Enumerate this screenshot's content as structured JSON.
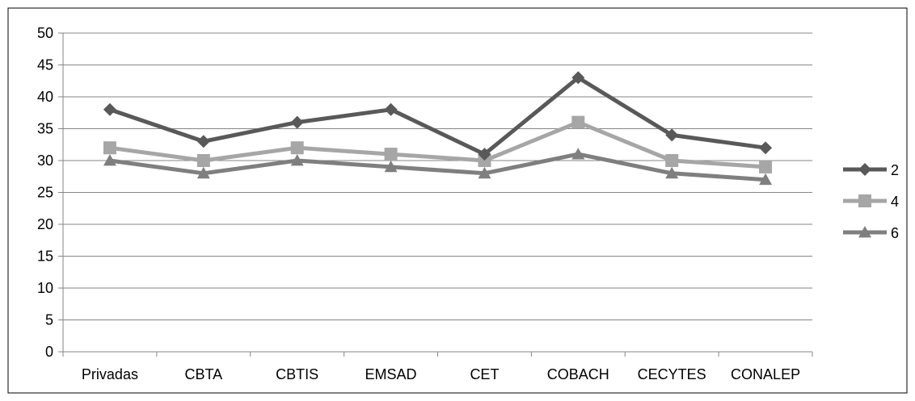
{
  "chart_data": {
    "type": "line",
    "title": "",
    "xlabel": "",
    "ylabel": "",
    "categories": [
      "Privadas",
      "CBTA",
      "CBTIS",
      "EMSAD",
      "CET",
      "COBACH",
      "CECYTES",
      "CONALEP"
    ],
    "ylim": [
      0,
      50
    ],
    "ytick_step": 5,
    "grid": "horizontal",
    "legend_position": "right",
    "series": [
      {
        "name": "2",
        "values": [
          38,
          33,
          36,
          38,
          31,
          43,
          34,
          32
        ],
        "color": "#595959",
        "marker": "diamond"
      },
      {
        "name": "4",
        "values": [
          32,
          30,
          32,
          31,
          30,
          36,
          30,
          29
        ],
        "color": "#a6a6a6",
        "marker": "square"
      },
      {
        "name": "6",
        "values": [
          30,
          28,
          30,
          29,
          28,
          31,
          28,
          27
        ],
        "color": "#7f7f7f",
        "marker": "triangle"
      }
    ]
  }
}
